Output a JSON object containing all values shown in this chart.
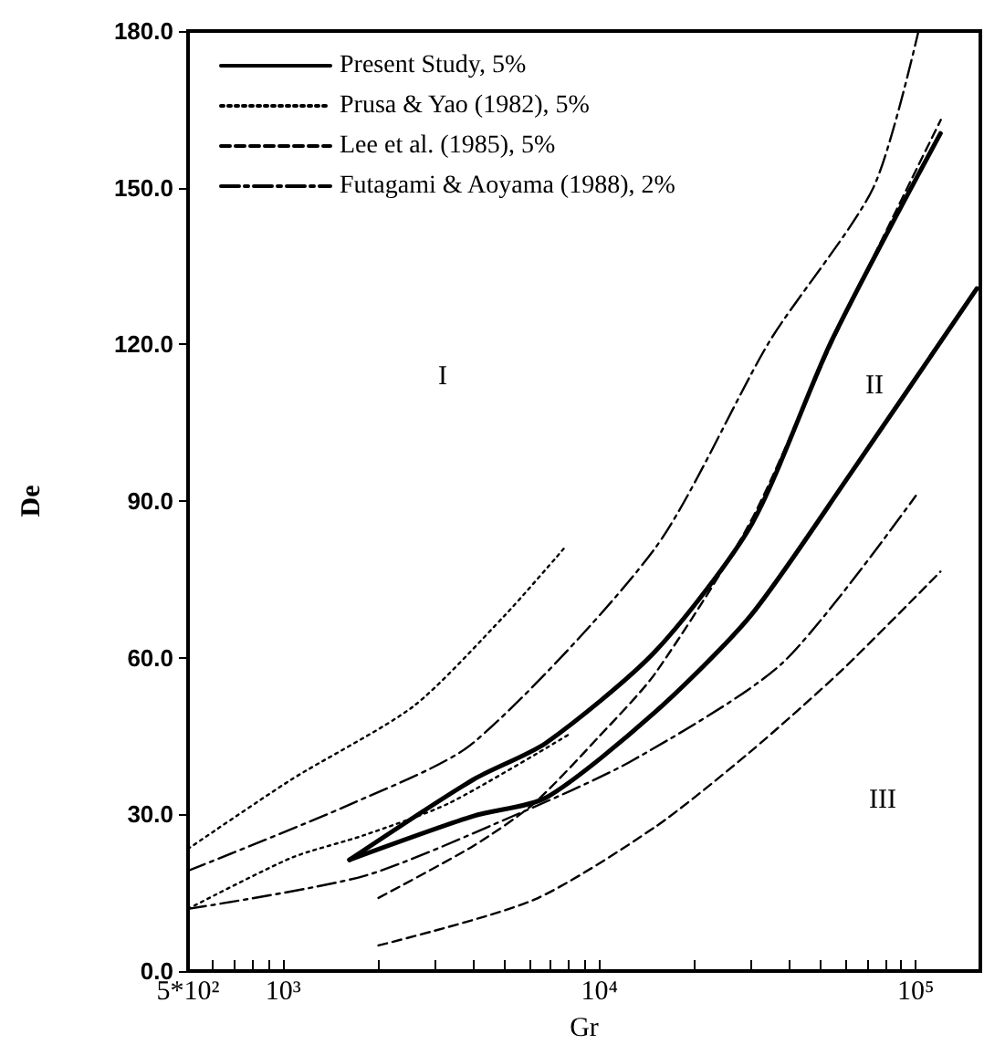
{
  "chart_data": {
    "type": "line",
    "xlabel": "Gr",
    "ylabel": "De",
    "log": "x",
    "grid": false,
    "legend": "top left",
    "marker": "none",
    "xlim": [
      500,
      160000
    ],
    "ylim": [
      0,
      180
    ],
    "xticks": [
      {
        "value": 500,
        "label": "5*10²"
      },
      {
        "value": 600,
        "label": null
      },
      {
        "value": 700,
        "label": null
      },
      {
        "value": 800,
        "label": null
      },
      {
        "value": 900,
        "label": null
      },
      {
        "value": 1000,
        "label": "10³"
      },
      {
        "value": 2000,
        "label": null
      },
      {
        "value": 3000,
        "label": null
      },
      {
        "value": 4000,
        "label": null
      },
      {
        "value": 5000,
        "label": null
      },
      {
        "value": 6000,
        "label": null
      },
      {
        "value": 7000,
        "label": null
      },
      {
        "value": 8000,
        "label": null
      },
      {
        "value": 9000,
        "label": null
      },
      {
        "value": 10000,
        "label": "10⁴"
      },
      {
        "value": 20000,
        "label": null
      },
      {
        "value": 30000,
        "label": null
      },
      {
        "value": 40000,
        "label": null
      },
      {
        "value": 50000,
        "label": null
      },
      {
        "value": 60000,
        "label": null
      },
      {
        "value": 70000,
        "label": null
      },
      {
        "value": 80000,
        "label": null
      },
      {
        "value": 90000,
        "label": null
      },
      {
        "value": 100000,
        "label": "10⁵"
      }
    ],
    "yticks": [
      {
        "value": 0,
        "label": "0.0"
      },
      {
        "value": 30,
        "label": "30.0"
      },
      {
        "value": 60,
        "label": "60.0"
      },
      {
        "value": 90,
        "label": "90.0"
      },
      {
        "value": 120,
        "label": "120.0"
      },
      {
        "value": 150,
        "label": "150.0"
      },
      {
        "value": 180,
        "label": "180.0"
      }
    ],
    "series": [
      {
        "name": "Present Study, 5%",
        "color": "#000000",
        "line_style": "solid",
        "x": [
          1620,
          4000,
          6780,
          15000,
          30300,
          54100,
          119700
        ],
        "values": [
          21.3,
          36.7,
          43.7,
          61.2,
          85.6,
          120.6,
          160.4
        ]
      },
      {
        "color": "#000000",
        "line_style": "solid",
        "x": [
          1620,
          4000,
          6780,
          15000,
          30000,
          61800,
          156000
        ],
        "values": [
          21.3,
          29.7,
          33.2,
          49.6,
          68,
          95,
          130.7
        ]
      },
      {
        "name": "Prusa & Yao (1982), 5%",
        "color": "#000000",
        "line_style": "dotted",
        "x": [
          500,
          1063,
          2580,
          5000,
          7740
        ],
        "values": [
          23.4,
          36.7,
          50.7,
          68,
          81
        ]
      },
      {
        "color": "#000000",
        "line_style": "dotted",
        "x": [
          500,
          1063,
          1800,
          3360,
          8050
        ],
        "values": [
          11.9,
          21.7,
          26,
          32.2,
          45.4
        ]
      },
      {
        "name": "Lee et al. (1985), 5%",
        "color": "#000000",
        "line_style": "dashed",
        "x": [
          2000,
          4000,
          6180,
          10000,
          15000,
          30000,
          55000,
          120000
        ],
        "values": [
          14,
          24,
          32,
          45,
          57,
          86,
          121,
          163
        ]
      },
      {
        "color": "#000000",
        "line_style": "dashed",
        "x": [
          2000,
          6180,
          15000,
          30000,
          58600,
          119700
        ],
        "values": [
          4.9,
          13.6,
          27.6,
          42,
          57.7,
          76.5
        ]
      },
      {
        "name": "Futagami & Aoyama (1988), 2%",
        "color": "#000000",
        "line_style": "dashdot",
        "x": [
          500,
          1640,
          3990,
          15000,
          34500,
          73400,
          102000
        ],
        "values": [
          19.2,
          32,
          43.7,
          81,
          120.6,
          150,
          180
        ]
      },
      {
        "color": "#000000",
        "line_style": "dashdot",
        "x": [
          500,
          1800,
          5200,
          12600,
          37900,
          100000
        ],
        "values": [
          11.9,
          18.2,
          29.4,
          40.2,
          59,
          91
        ]
      }
    ],
    "annotations": [
      "I",
      "II",
      "III"
    ]
  }
}
